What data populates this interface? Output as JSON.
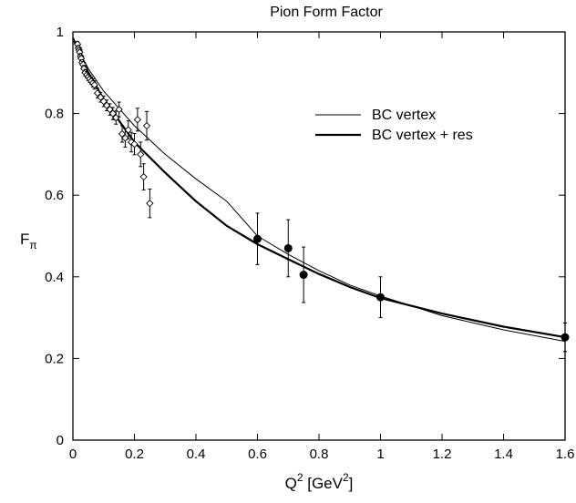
{
  "chart_data": {
    "type": "line",
    "title": "Pion Form Factor",
    "xlabel": {
      "base": "Q",
      "sup": "2",
      "bracket_open": " [GeV",
      "unit_sup": "2",
      "bracket_close": "]"
    },
    "ylabel": {
      "base": "F",
      "sub": "π"
    },
    "xlim": [
      0,
      1.6
    ],
    "ylim": [
      0,
      1
    ],
    "xticks": [
      0,
      0.2,
      0.4,
      0.6,
      0.8,
      1,
      1.2,
      1.4,
      1.6
    ],
    "xtick_labels": [
      "0",
      "0.2",
      "0.4",
      "0.6",
      "0.8",
      "1",
      "1.2",
      "1.4",
      "1.6"
    ],
    "yticks": [
      0,
      0.2,
      0.4,
      0.6,
      0.8,
      1
    ],
    "ytick_labels": [
      "0",
      "0.2",
      "0.4",
      "0.6",
      "0.8",
      "1"
    ],
    "grid": false,
    "legend_position": "top-right",
    "series": [
      {
        "name": "BC vertex",
        "style": "thin-line",
        "x": [
          0,
          0.05,
          0.1,
          0.2,
          0.3,
          0.4,
          0.5,
          0.6,
          0.7,
          0.8,
          0.9,
          1.0,
          1.2,
          1.4,
          1.6
        ],
        "y": [
          0.98,
          0.91,
          0.855,
          0.77,
          0.7,
          0.64,
          0.585,
          0.5,
          0.455,
          0.415,
          0.38,
          0.353,
          0.305,
          0.27,
          0.242
        ]
      },
      {
        "name": "BC vertex + res",
        "style": "thick-line",
        "x": [
          0,
          0.05,
          0.1,
          0.2,
          0.3,
          0.4,
          0.5,
          0.6,
          0.7,
          0.8,
          0.9,
          1.0,
          1.2,
          1.4,
          1.6
        ],
        "y": [
          0.985,
          0.9,
          0.835,
          0.73,
          0.655,
          0.585,
          0.525,
          0.48,
          0.443,
          0.407,
          0.375,
          0.348,
          0.31,
          0.278,
          0.252
        ]
      },
      {
        "name": "",
        "style": "filled-circles",
        "x": [
          0.6,
          0.7,
          0.75,
          1.0,
          1.6
        ],
        "y": [
          0.493,
          0.47,
          0.405,
          0.35,
          0.252
        ],
        "yerr": [
          0.063,
          0.07,
          0.068,
          0.05,
          0.035
        ]
      },
      {
        "name": "",
        "style": "open-diamonds",
        "x": [
          0.015,
          0.018,
          0.02,
          0.022,
          0.025,
          0.027,
          0.03,
          0.033,
          0.036,
          0.04,
          0.045,
          0.05,
          0.055,
          0.06,
          0.065,
          0.07,
          0.08,
          0.09,
          0.1,
          0.11,
          0.12,
          0.13,
          0.14,
          0.15,
          0.16,
          0.17,
          0.18,
          0.19,
          0.2,
          0.21,
          0.22,
          0.23,
          0.24,
          0.25
        ],
        "y": [
          0.97,
          0.96,
          0.955,
          0.95,
          0.94,
          0.935,
          0.925,
          0.92,
          0.91,
          0.9,
          0.895,
          0.89,
          0.885,
          0.88,
          0.875,
          0.87,
          0.85,
          0.84,
          0.83,
          0.82,
          0.81,
          0.8,
          0.79,
          0.81,
          0.75,
          0.74,
          0.76,
          0.73,
          0.725,
          0.785,
          0.7,
          0.645,
          0.77,
          0.58
        ],
        "yerr": [
          0.006,
          0.006,
          0.006,
          0.006,
          0.007,
          0.007,
          0.007,
          0.007,
          0.008,
          0.008,
          0.008,
          0.009,
          0.009,
          0.009,
          0.01,
          0.01,
          0.012,
          0.012,
          0.013,
          0.013,
          0.014,
          0.015,
          0.016,
          0.018,
          0.02,
          0.022,
          0.022,
          0.024,
          0.026,
          0.028,
          0.03,
          0.032,
          0.035,
          0.035
        ]
      }
    ]
  }
}
